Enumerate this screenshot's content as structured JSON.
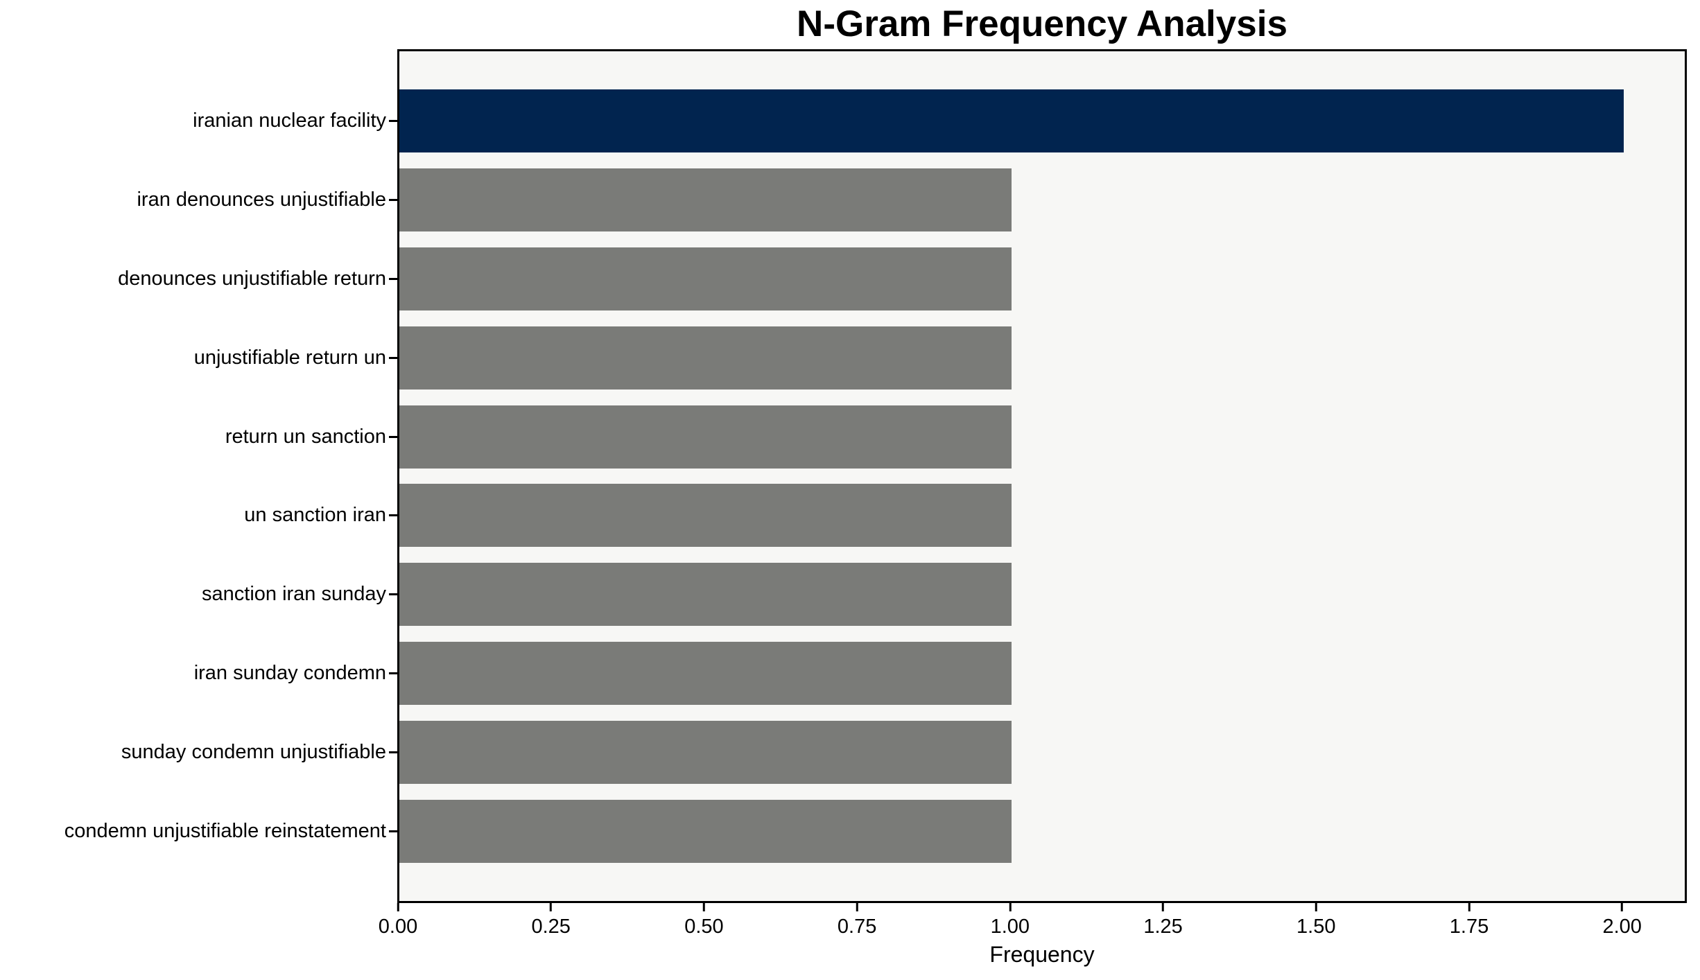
{
  "chart_data": {
    "type": "bar",
    "orientation": "horizontal",
    "title": "N-Gram Frequency Analysis",
    "xlabel": "Frequency",
    "ylabel": "",
    "categories": [
      "iranian nuclear facility",
      "iran denounces unjustifiable",
      "denounces unjustifiable return",
      "unjustifiable return un",
      "return un sanction",
      "un sanction iran",
      "sanction iran sunday",
      "iran sunday condemn",
      "sunday condemn unjustifiable",
      "condemn unjustifiable reinstatement"
    ],
    "values": [
      2,
      1,
      1,
      1,
      1,
      1,
      1,
      1,
      1,
      1
    ],
    "xlim": [
      0,
      2.1
    ],
    "x_ticks": [
      0,
      0.25,
      0.5,
      0.75,
      1.0,
      1.25,
      1.5,
      1.75,
      2.0
    ],
    "x_tick_labels": [
      "0.00",
      "0.25",
      "0.50",
      "0.75",
      "1.00",
      "1.25",
      "1.50",
      "1.75",
      "2.00"
    ],
    "grid": false,
    "legend_position": "none",
    "bar_height_fraction": 0.8,
    "colors": {
      "highlight_bar": "#01244f",
      "default_bar": "#7a7b78",
      "plot_background": "#f7f7f5",
      "figure_background": "#ffffff",
      "axis": "#000000",
      "text": "#000000"
    },
    "bar_colors": [
      "#01244f",
      "#7a7b78",
      "#7a7b78",
      "#7a7b78",
      "#7a7b78",
      "#7a7b78",
      "#7a7b78",
      "#7a7b78",
      "#7a7b78",
      "#7a7b78"
    ]
  }
}
